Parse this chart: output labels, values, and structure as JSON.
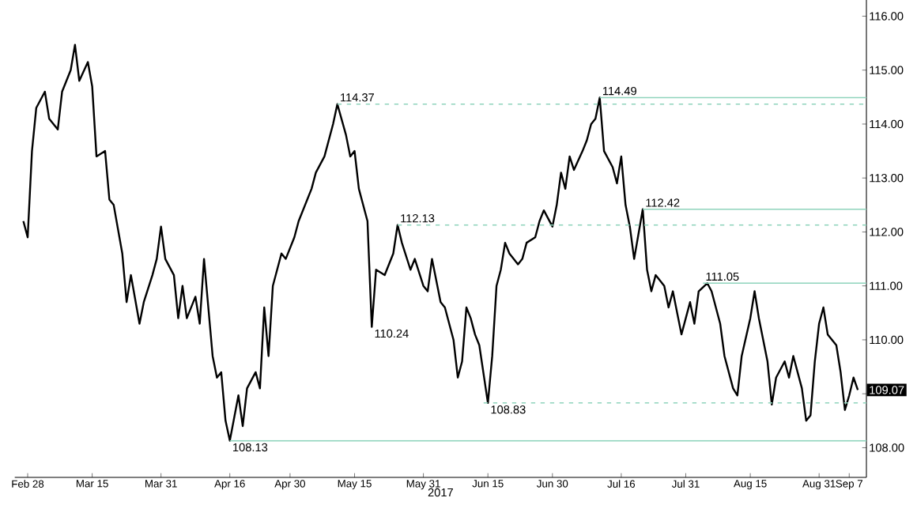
{
  "chart_data": {
    "type": "line",
    "xlabel": "2017",
    "xlim": [
      "2017-02-25",
      "2017-09-11"
    ],
    "xticks": [
      {
        "value": "2017-02-28",
        "label": "Feb 28"
      },
      {
        "value": "2017-03-15",
        "label": "Mar 15"
      },
      {
        "value": "2017-03-31",
        "label": "Mar 31"
      },
      {
        "value": "2017-04-16",
        "label": "Apr 16"
      },
      {
        "value": "2017-04-30",
        "label": "Apr 30"
      },
      {
        "value": "2017-05-15",
        "label": "May 15"
      },
      {
        "value": "2017-05-31",
        "label": "May 31"
      },
      {
        "value": "2017-06-15",
        "label": "Jun 15"
      },
      {
        "value": "2017-06-30",
        "label": "Jun 30"
      },
      {
        "value": "2017-07-16",
        "label": "Jul 16"
      },
      {
        "value": "2017-07-31",
        "label": "Jul 31"
      },
      {
        "value": "2017-08-15",
        "label": "Aug 15"
      },
      {
        "value": "2017-08-31",
        "label": "Aug 31"
      },
      {
        "value": "2017-09-07",
        "label": "Sep 7"
      }
    ],
    "ylim": [
      107.45,
      116.3
    ],
    "yticks": [
      {
        "value": 108,
        "label": "108.00"
      },
      {
        "value": 109,
        "label": null
      },
      {
        "value": 110,
        "label": "110.00"
      },
      {
        "value": 111,
        "label": "111.00"
      },
      {
        "value": 112,
        "label": "112.00"
      },
      {
        "value": 113,
        "label": "113.00"
      },
      {
        "value": 114,
        "label": "114.00"
      },
      {
        "value": 115,
        "label": "115.00"
      },
      {
        "value": 116,
        "label": "116.00"
      }
    ],
    "series": [
      {
        "color": "#000000",
        "x": [
          "2017-02-27",
          "2017-02-28",
          "2017-03-01",
          "2017-03-02",
          "2017-03-04",
          "2017-03-05",
          "2017-03-07",
          "2017-03-08",
          "2017-03-10",
          "2017-03-11",
          "2017-03-12",
          "2017-03-14",
          "2017-03-15",
          "2017-03-16",
          "2017-03-18",
          "2017-03-19",
          "2017-03-20",
          "2017-03-22",
          "2017-03-23",
          "2017-03-24",
          "2017-03-26",
          "2017-03-27",
          "2017-03-29",
          "2017-03-30",
          "2017-03-31",
          "2017-04-01",
          "2017-04-03",
          "2017-04-04",
          "2017-04-05",
          "2017-04-06",
          "2017-04-08",
          "2017-04-09",
          "2017-04-10",
          "2017-04-11",
          "2017-04-12",
          "2017-04-13",
          "2017-04-14",
          "2017-04-15",
          "2017-04-16",
          "2017-04-18",
          "2017-04-19",
          "2017-04-20",
          "2017-04-22",
          "2017-04-23",
          "2017-04-24",
          "2017-04-25",
          "2017-04-26",
          "2017-04-27",
          "2017-04-28",
          "2017-04-29",
          "2017-05-01",
          "2017-05-02",
          "2017-05-04",
          "2017-05-05",
          "2017-05-06",
          "2017-05-08",
          "2017-05-10",
          "2017-05-11",
          "2017-05-13",
          "2017-05-14",
          "2017-05-15",
          "2017-05-16",
          "2017-05-18",
          "2017-05-19",
          "2017-05-20",
          "2017-05-22",
          "2017-05-24",
          "2017-05-25",
          "2017-05-26",
          "2017-05-28",
          "2017-05-29",
          "2017-05-31",
          "2017-06-01",
          "2017-06-02",
          "2017-06-04",
          "2017-06-05",
          "2017-06-07",
          "2017-06-08",
          "2017-06-09",
          "2017-06-10",
          "2017-06-11",
          "2017-06-12",
          "2017-06-13",
          "2017-06-15",
          "2017-06-16",
          "2017-06-17",
          "2017-06-18",
          "2017-06-19",
          "2017-06-20",
          "2017-06-22",
          "2017-06-23",
          "2017-06-24",
          "2017-06-26",
          "2017-06-27",
          "2017-06-28",
          "2017-06-30",
          "2017-07-01",
          "2017-07-02",
          "2017-07-03",
          "2017-07-04",
          "2017-07-05",
          "2017-07-07",
          "2017-07-08",
          "2017-07-09",
          "2017-07-10",
          "2017-07-11",
          "2017-07-12",
          "2017-07-14",
          "2017-07-15",
          "2017-07-16",
          "2017-07-17",
          "2017-07-18",
          "2017-07-19",
          "2017-07-21",
          "2017-07-22",
          "2017-07-23",
          "2017-07-24",
          "2017-07-26",
          "2017-07-27",
          "2017-07-28",
          "2017-07-30",
          "2017-07-31",
          "2017-08-01",
          "2017-08-02",
          "2017-08-03",
          "2017-08-05",
          "2017-08-06",
          "2017-08-08",
          "2017-08-09",
          "2017-08-11",
          "2017-08-12",
          "2017-08-13",
          "2017-08-15",
          "2017-08-16",
          "2017-08-17",
          "2017-08-19",
          "2017-08-20",
          "2017-08-21",
          "2017-08-23",
          "2017-08-24",
          "2017-08-25",
          "2017-08-27",
          "2017-08-28",
          "2017-08-29",
          "2017-08-30",
          "2017-08-31",
          "2017-09-01",
          "2017-09-02",
          "2017-09-04",
          "2017-09-05",
          "2017-09-06",
          "2017-09-07",
          "2017-09-08",
          "2017-09-09"
        ],
        "values": [
          112.2,
          111.9,
          113.5,
          114.3,
          114.6,
          114.1,
          113.9,
          114.6,
          115.0,
          115.47,
          114.8,
          115.15,
          114.7,
          113.4,
          113.5,
          112.6,
          112.5,
          111.6,
          110.7,
          111.2,
          110.3,
          110.7,
          111.2,
          111.5,
          112.1,
          111.5,
          111.2,
          110.4,
          111.0,
          110.4,
          110.8,
          110.3,
          111.5,
          110.6,
          109.7,
          109.3,
          109.4,
          108.5,
          108.13,
          108.97,
          108.4,
          109.1,
          109.4,
          109.1,
          110.6,
          109.7,
          111.0,
          111.3,
          111.6,
          111.5,
          111.9,
          112.2,
          112.6,
          112.8,
          113.1,
          113.4,
          114.0,
          114.37,
          113.8,
          113.4,
          113.5,
          112.8,
          112.2,
          110.24,
          111.3,
          111.2,
          111.6,
          112.13,
          111.8,
          111.3,
          111.5,
          111.0,
          110.9,
          111.5,
          110.7,
          110.6,
          110.0,
          109.3,
          109.6,
          110.6,
          110.4,
          110.1,
          109.9,
          108.83,
          109.7,
          111.0,
          111.3,
          111.8,
          111.6,
          111.4,
          111.5,
          111.8,
          111.9,
          112.2,
          112.4,
          112.1,
          112.5,
          113.1,
          112.8,
          113.4,
          113.15,
          113.5,
          113.7,
          114.0,
          114.1,
          114.49,
          113.5,
          113.2,
          112.9,
          113.4,
          112.5,
          112.1,
          111.5,
          112.42,
          111.3,
          110.9,
          111.2,
          111.0,
          110.6,
          110.9,
          110.1,
          110.4,
          110.7,
          110.3,
          110.9,
          111.05,
          110.9,
          110.3,
          109.7,
          109.1,
          108.97,
          109.7,
          110.4,
          110.9,
          110.4,
          109.6,
          108.8,
          109.3,
          109.6,
          109.3,
          109.7,
          109.1,
          108.5,
          108.6,
          109.6,
          110.3,
          110.6,
          110.1,
          109.9,
          109.4,
          108.7,
          108.97,
          109.3,
          109.07
        ]
      },
      {
        "color": "#8fd4bc",
        "line_style": "dashed",
        "x": [
          "2017-05-11",
          "2017-09-11"
        ],
        "values": [
          114.37,
          114.37
        ]
      },
      {
        "color": "#8fd4bc",
        "line_style": "dashed",
        "x": [
          "2017-05-25",
          "2017-09-11"
        ],
        "values": [
          112.13,
          112.13
        ]
      },
      {
        "color": "#8fd4bc",
        "line_style": "dashed",
        "x": [
          "2017-06-14",
          "2017-09-11"
        ],
        "values": [
          108.83,
          108.83
        ]
      },
      {
        "color": "#8fd4bc",
        "line_style": "solid",
        "x": [
          "2017-07-11",
          "2017-09-11"
        ],
        "values": [
          114.49,
          114.49
        ]
      },
      {
        "color": "#8fd4bc",
        "line_style": "solid",
        "x": [
          "2017-07-21",
          "2017-09-11"
        ],
        "values": [
          112.42,
          112.42
        ]
      },
      {
        "color": "#8fd4bc",
        "line_style": "solid",
        "x": [
          "2017-08-04",
          "2017-09-11"
        ],
        "values": [
          111.05,
          111.05
        ]
      },
      {
        "color": "#8fd4bc",
        "line_style": "solid",
        "x": [
          "2017-04-16",
          "2017-09-11"
        ],
        "values": [
          108.13,
          108.13
        ]
      }
    ],
    "annotations": [
      {
        "text": "114.37",
        "x": "2017-05-11",
        "y": 114.37
      },
      {
        "text": "112.13",
        "x": "2017-05-25",
        "y": 112.13
      },
      {
        "text": "110.24",
        "x": "2017-05-19",
        "y": 110.24
      },
      {
        "text": "108.13",
        "x": "2017-04-16",
        "y": 108.13
      },
      {
        "text": "108.83",
        "x": "2017-06-15",
        "y": 108.83
      },
      {
        "text": "114.49",
        "x": "2017-07-11",
        "y": 114.49
      },
      {
        "text": "112.42",
        "x": "2017-07-21",
        "y": 112.42
      },
      {
        "text": "111.05",
        "x": "2017-08-04",
        "y": 111.05
      },
      "109.07"
    ]
  }
}
